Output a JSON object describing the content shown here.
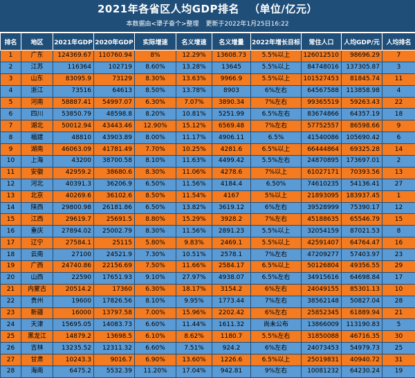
{
  "header": {
    "title": "2021年各省区人均GDP排名",
    "unit": "（单位/亿元）",
    "source": "本数据由<犟子奋个>整理",
    "updated": "更新于2022年1月25日16:22"
  },
  "table": {
    "columns": [
      "排名",
      "地区",
      "2021年GDP",
      "2020年GDP",
      "实际增速",
      "名义增速",
      "名义增量",
      "2022年增长目标",
      "常住人口",
      "人均GDP/元",
      "人均排名"
    ],
    "rows": [
      [
        "1",
        "广东",
        "124369.67",
        "110760.94",
        "8%",
        "12.29%",
        "13608.73",
        "5.5%以上",
        "126012510",
        "98696.29",
        "7"
      ],
      [
        "2",
        "江苏",
        "116364",
        "102719",
        "8.60%",
        "13.28%",
        "13645",
        "5.5%以上",
        "84748016",
        "137305.87",
        "3"
      ],
      [
        "3",
        "山东",
        "83095.9",
        "73129",
        "8.30%",
        "13.63%",
        "9966.9",
        "5.5%以上",
        "101527453",
        "81845.74",
        "11"
      ],
      [
        "4",
        "浙江",
        "73516",
        "64613",
        "8.50%",
        "13.78%",
        "8903",
        "6%左右",
        "64567588",
        "113858.98",
        "4"
      ],
      [
        "5",
        "河南",
        "58887.41",
        "54997.07",
        "6.30%",
        "7.07%",
        "3890.34",
        "7%左右",
        "99365519",
        "59263.43",
        "22"
      ],
      [
        "6",
        "四川",
        "53850.79",
        "48598.8",
        "8.20%",
        "10.81%",
        "5251.99",
        "6.5%左右",
        "83674866",
        "64357.19",
        "18"
      ],
      [
        "7",
        "湖北",
        "50012.94",
        "43443.46",
        "12.90%",
        "15.12%",
        "6569.48",
        "7%左右",
        "57752557",
        "86598.66",
        "9"
      ],
      [
        "8",
        "福建",
        "48810",
        "43903.89",
        "8.00%",
        "11.17%",
        "4906.11",
        "6.5%",
        "41540086",
        "105690.42",
        "6"
      ],
      [
        "9",
        "湖南",
        "46063.09",
        "41781.49",
        "7.70%",
        "10.25%",
        "4281.6",
        "6.5%以上",
        "66444864",
        "69325.28",
        "14"
      ],
      [
        "10",
        "上海",
        "43200",
        "38700.58",
        "8.10%",
        "11.63%",
        "4499.42",
        "5.5%左右",
        "24870895",
        "173697.01",
        "2"
      ],
      [
        "11",
        "安徽",
        "42959.2",
        "38680.6",
        "8.30%",
        "11.06%",
        "4278.6",
        "7%以上",
        "61027171",
        "70393.56",
        "13"
      ],
      [
        "12",
        "河北",
        "40391.3",
        "36206.9",
        "6.50%",
        "11.56%",
        "4184.4",
        "6.50%",
        "74610235",
        "54136.41",
        "27"
      ],
      [
        "13",
        "北京",
        "40269.6",
        "36102.6",
        "8.50%",
        "11.54%",
        "4167",
        "5%以上",
        "21893095",
        "183937.45",
        "1"
      ],
      [
        "14",
        "陕西",
        "29800.98",
        "26181.86",
        "6.50%",
        "13.82%",
        "3619.12",
        "6%左右",
        "39528999",
        "75390.17",
        "12"
      ],
      [
        "15",
        "江西",
        "29619.7",
        "25691.5",
        "8.80%",
        "15.29%",
        "3928.2",
        "7%左右",
        "45188635",
        "65546.79",
        "15"
      ],
      [
        "16",
        "重庆",
        "27894.02",
        "25002.79",
        "8.30%",
        "11.56%",
        "2891.23",
        "5.5%以上",
        "32054159",
        "87021.53",
        "8"
      ],
      [
        "17",
        "辽宁",
        "27584.1",
        "25115",
        "5.80%",
        "9.83%",
        "2469.1",
        "5.5%以上",
        "42591407",
        "64764.47",
        "16"
      ],
      [
        "18",
        "云南",
        "27100",
        "24521.9",
        "7.30%",
        "10.51%",
        "2578.1",
        "7%左右",
        "47209277",
        "57403.97",
        "23"
      ],
      [
        "19",
        "广西",
        "24740.86",
        "22156.69",
        "7.50%",
        "11.66%",
        "2584.17",
        "6.5%以上",
        "50126804",
        "49356.55",
        "29"
      ],
      [
        "20",
        "山西",
        "22590",
        "17651.93",
        "9.10%",
        "27.97%",
        "4938.07",
        "6.5%左右",
        "34915616",
        "64698.84",
        "17"
      ],
      [
        "21",
        "内蒙古",
        "20514.2",
        "17360",
        "6.30%",
        "18.17%",
        "3154.2",
        "6%左右",
        "24049155",
        "85301.13",
        "10"
      ],
      [
        "22",
        "贵州",
        "19600",
        "17826.56",
        "8.10%",
        "9.95%",
        "1773.44",
        "7%左右",
        "38562148",
        "50827.04",
        "28"
      ],
      [
        "23",
        "新疆",
        "16000",
        "13797.58",
        "7.00%",
        "15.96%",
        "2202.42",
        "6%左右",
        "25852345",
        "61889.94",
        "21"
      ],
      [
        "24",
        "天津",
        "15695.05",
        "14083.73",
        "6.60%",
        "11.44%",
        "1611.32",
        "尚未公布",
        "13866009",
        "113190.83",
        "5"
      ],
      [
        "25",
        "黑龙江",
        "14879.2",
        "13698.5",
        "6.10%",
        "8.62%",
        "1180.7",
        "5.5%左右",
        "31850088",
        "46716.35",
        "30"
      ],
      [
        "26",
        "吉林",
        "13235.52",
        "12311.32",
        "6.60%",
        "7.51%",
        "924.2",
        "6%左右",
        "24073453",
        "54979.73",
        "25"
      ],
      [
        "27",
        "甘肃",
        "10243.3",
        "9016.7",
        "6.90%",
        "13.60%",
        "1226.6",
        "6.5%以上",
        "25019831",
        "40940.72",
        "31"
      ],
      [
        "28",
        "海南",
        "6475.2",
        "5532.39",
        "11.20%",
        "17.04%",
        "942.81",
        "9%左右",
        "10081232",
        "64230.24",
        "19"
      ]
    ]
  }
}
